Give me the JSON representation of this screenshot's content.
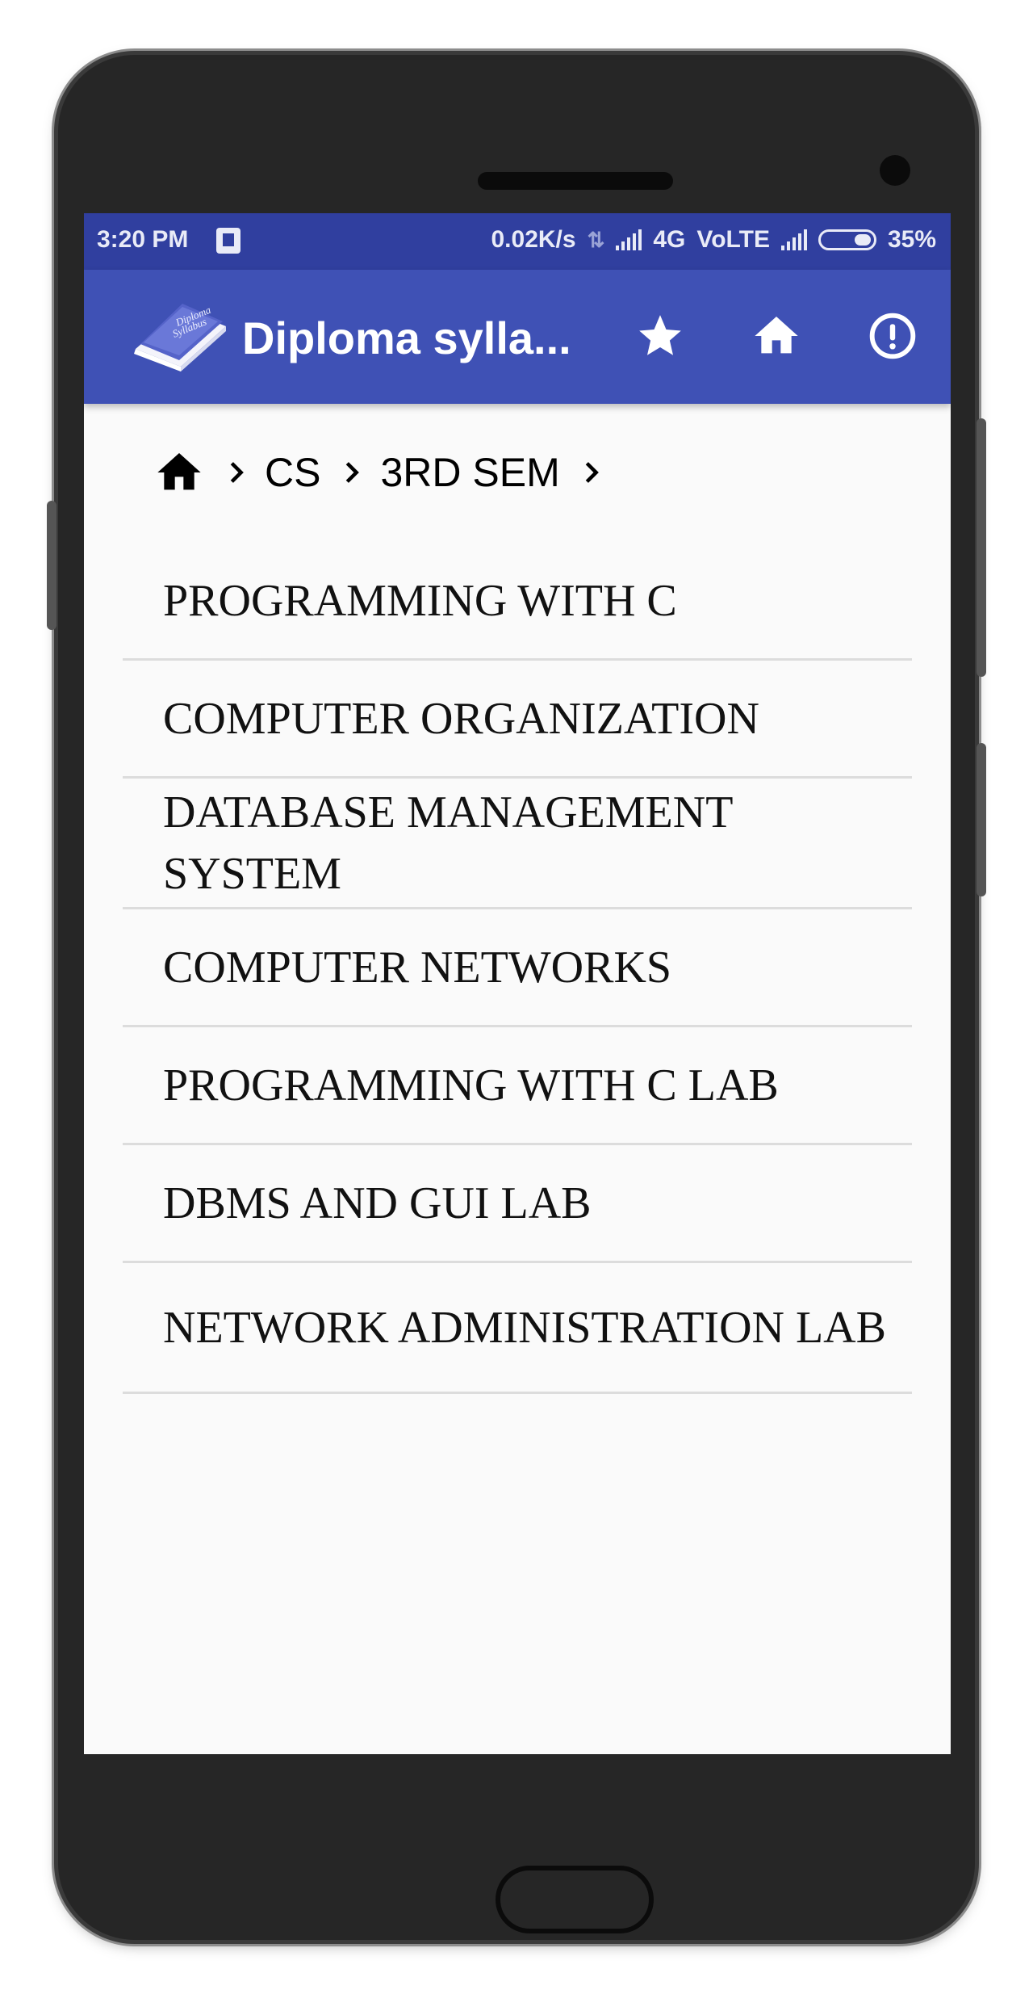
{
  "status_bar": {
    "time": "3:20 PM",
    "speed": "0.02K/s",
    "network": "4G",
    "volte": "VoLTE",
    "battery": "35%"
  },
  "app_bar": {
    "title": "Diploma sylla...",
    "logo_text_line1": "Diploma",
    "logo_text_line2": "Syllabus",
    "icons": [
      "star-icon",
      "home-icon",
      "info-icon"
    ]
  },
  "breadcrumb": {
    "items": [
      "CS",
      "3RD SEM"
    ]
  },
  "subjects": [
    "PROGRAMMING WITH C",
    "COMPUTER ORGANIZATION",
    "DATABASE MANAGEMENT SYSTEM",
    "COMPUTER NETWORKS",
    "PROGRAMMING WITH C LAB",
    "DBMS AND GUI LAB",
    "NETWORK ADMINISTRATION LAB"
  ],
  "colors": {
    "status_bar": "#303f9f",
    "app_bar": "#3f51b5",
    "background": "#fafafa",
    "divider": "#dcdcdc"
  }
}
